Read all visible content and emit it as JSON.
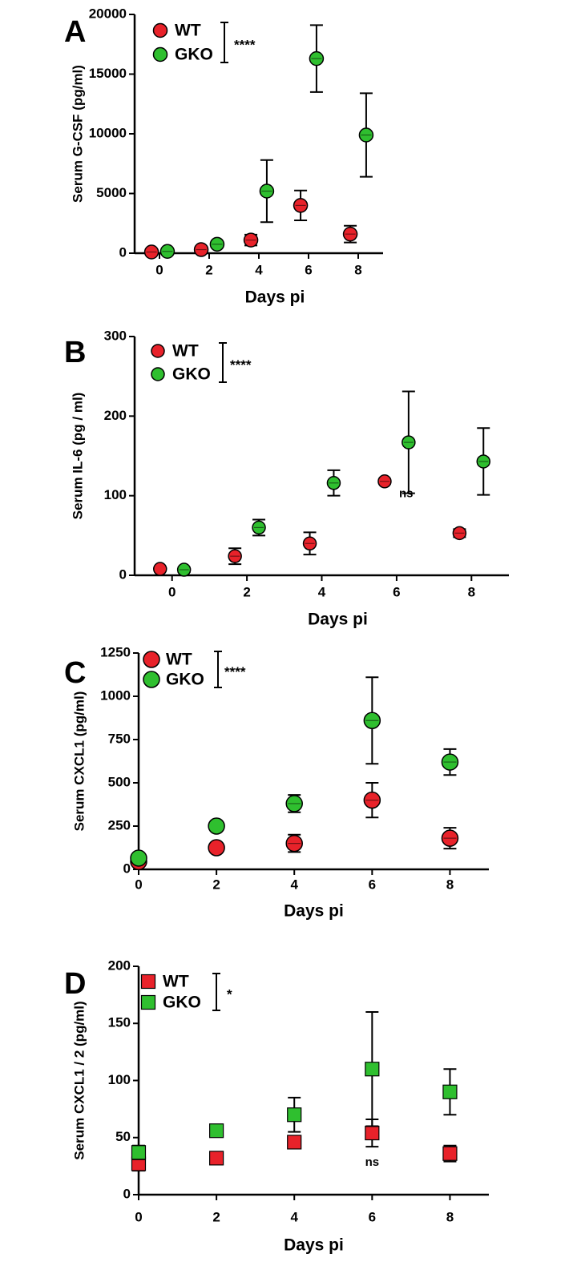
{
  "colors": {
    "wt": "#e8222a",
    "gko": "#2fbf2f",
    "axis": "#000000"
  },
  "chart_data": [
    {
      "panel": "A",
      "type": "scatter",
      "marker": "circle",
      "dodge": true,
      "ylabel": "Serum G-CSF (pg/ml)",
      "xlabel": "Days pi",
      "xlim": [
        -1,
        9
      ],
      "ylim": [
        0,
        20000
      ],
      "xticks": [
        0,
        2,
        4,
        6,
        8
      ],
      "xtick_labels": [
        "0",
        "2",
        "4",
        "6",
        "8"
      ],
      "yticks": [
        0,
        5000,
        10000,
        15000,
        20000
      ],
      "ytick_labels": [
        "0",
        "5000",
        "10000",
        "15000",
        "20000"
      ],
      "legend": {
        "wt": "WT",
        "gko": "GKO"
      },
      "significance": "****",
      "series": [
        {
          "name": "WT",
          "color_key": "wt",
          "x": [
            0,
            2,
            4,
            6,
            8
          ],
          "y": [
            100,
            300,
            1100,
            4000,
            1600
          ],
          "err": [
            100,
            150,
            450,
            1250,
            700
          ]
        },
        {
          "name": "GKO",
          "color_key": "gko",
          "x": [
            0,
            2,
            4,
            6,
            8
          ],
          "y": [
            150,
            750,
            5200,
            16300,
            9900
          ],
          "err": [
            100,
            100,
            2600,
            2800,
            3500
          ]
        }
      ],
      "annotations": []
    },
    {
      "panel": "B",
      "type": "scatter",
      "marker": "circle",
      "dodge": true,
      "ylabel": "Serum IL-6 (pg / ml)",
      "xlabel": "Days pi",
      "xlim": [
        -1,
        9
      ],
      "ylim": [
        0,
        300
      ],
      "xticks": [
        0,
        2,
        4,
        6,
        8
      ],
      "xtick_labels": [
        "0",
        "2",
        "4",
        "6",
        "8"
      ],
      "yticks": [
        0,
        100,
        200,
        300
      ],
      "ytick_labels": [
        "0",
        "100",
        "200",
        "300"
      ],
      "legend": {
        "wt": "WT",
        "gko": "GKO"
      },
      "significance": "****",
      "series": [
        {
          "name": "WT",
          "color_key": "wt",
          "x": [
            0,
            2,
            4,
            6,
            8
          ],
          "y": [
            8,
            24,
            40,
            118,
            53
          ],
          "err": [
            0,
            10,
            14,
            3,
            5
          ]
        },
        {
          "name": "GKO",
          "color_key": "gko",
          "x": [
            0,
            2,
            4,
            6,
            8
          ],
          "y": [
            7,
            60,
            116,
            167,
            143
          ],
          "err": [
            3,
            10,
            16,
            64,
            42
          ]
        }
      ],
      "annotations": [
        {
          "text": "ns",
          "x": 6,
          "y": 112,
          "series": "WT"
        }
      ]
    },
    {
      "panel": "C",
      "type": "scatter",
      "marker": "circle",
      "dodge": false,
      "ylabel": "Serum CXCL1 (pg/ml)",
      "xlabel": "Days pi",
      "xlim": [
        0,
        9
      ],
      "ylim": [
        0,
        1250
      ],
      "xticks": [
        0,
        2,
        4,
        6,
        8
      ],
      "xtick_labels": [
        "0",
        "2",
        "4",
        "6",
        "8"
      ],
      "yticks": [
        0,
        250,
        500,
        750,
        1000,
        1250
      ],
      "ytick_labels": [
        "0",
        "250",
        "500",
        "750",
        "1000",
        "1250"
      ],
      "legend": {
        "wt": "WT",
        "gko": "GKO"
      },
      "significance": "****",
      "series": [
        {
          "name": "WT",
          "color_key": "wt",
          "x": [
            0,
            2,
            4,
            6,
            8
          ],
          "y": [
            45,
            125,
            150,
            400,
            180
          ],
          "err": [
            0,
            0,
            50,
            100,
            60
          ]
        },
        {
          "name": "GKO",
          "color_key": "gko",
          "x": [
            0,
            2,
            4,
            6,
            8
          ],
          "y": [
            65,
            250,
            380,
            860,
            620
          ],
          "err": [
            0,
            0,
            50,
            250,
            75
          ]
        }
      ],
      "annotations": []
    },
    {
      "panel": "D",
      "type": "scatter",
      "marker": "square",
      "dodge": false,
      "ylabel": "Serum CXCL1 / 2 (pg/ml)",
      "xlabel": "Days pi",
      "xlim": [
        0,
        9
      ],
      "ylim": [
        0,
        200
      ],
      "xticks": [
        0,
        2,
        4,
        6,
        8
      ],
      "xtick_labels": [
        "0",
        "2",
        "4",
        "6",
        "8"
      ],
      "yticks": [
        0,
        50,
        100,
        150,
        200
      ],
      "ytick_labels": [
        "0",
        "50",
        "100",
        "150",
        "200"
      ],
      "legend": {
        "wt": "WT",
        "gko": "GKO"
      },
      "significance": "*",
      "series": [
        {
          "name": "WT",
          "color_key": "wt",
          "x": [
            0,
            2,
            4,
            6,
            8
          ],
          "y": [
            27,
            32,
            46,
            54,
            36
          ],
          "err": [
            6,
            0,
            5,
            12,
            7
          ]
        },
        {
          "name": "GKO",
          "color_key": "gko",
          "x": [
            0,
            2,
            4,
            6,
            8
          ],
          "y": [
            37,
            56,
            70,
            110,
            90
          ],
          "err": [
            6,
            0,
            15,
            50,
            20
          ]
        }
      ],
      "annotations": [
        {
          "text": "ns",
          "x": 6,
          "y": 38,
          "series": "WT"
        }
      ]
    }
  ]
}
